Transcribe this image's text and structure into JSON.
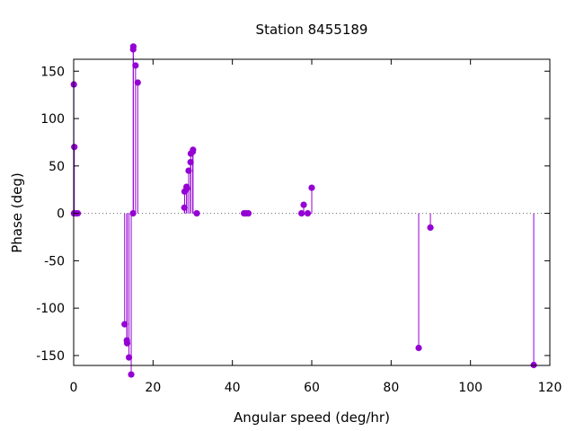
{
  "chart_data": {
    "type": "scatter",
    "style": "impulses-with-points",
    "title": "Station 8455189",
    "xlabel": "Angular speed (deg/hr)",
    "ylabel": "Phase (deg)",
    "xlim": [
      0,
      120
    ],
    "ylim": [
      -180,
      180
    ],
    "x_ticks": [
      0,
      20,
      40,
      60,
      80,
      100,
      120
    ],
    "y_ticks": [
      -150,
      -100,
      -50,
      0,
      50,
      100,
      150
    ],
    "x_tick_labels": [
      "0",
      "20",
      "40",
      "60",
      "80",
      "100",
      "120"
    ],
    "y_tick_labels": [
      "-150",
      "-100",
      "-50",
      "0",
      "50",
      "100",
      "150"
    ],
    "grid": false,
    "zero_line": "dotted",
    "color": "#9400d3",
    "series": [
      {
        "points": [
          [
            0.04,
            136
          ],
          [
            0.08,
            0
          ],
          [
            0.16,
            70
          ],
          [
            0.54,
            0
          ],
          [
            1.02,
            0
          ],
          [
            12.85,
            -117
          ],
          [
            13.4,
            -134
          ],
          [
            13.47,
            -137
          ],
          [
            13.94,
            -152
          ],
          [
            14.5,
            -170
          ],
          [
            14.96,
            0
          ],
          [
            15.04,
            176
          ],
          [
            15.0,
            173
          ],
          [
            15.59,
            156
          ],
          [
            16.14,
            138
          ],
          [
            27.9,
            6
          ],
          [
            27.97,
            23
          ],
          [
            28.51,
            26
          ],
          [
            28.44,
            28
          ],
          [
            28.98,
            45
          ],
          [
            29.46,
            54
          ],
          [
            29.53,
            63
          ],
          [
            30.0,
            65
          ],
          [
            30.08,
            67
          ],
          [
            31.02,
            0
          ],
          [
            42.93,
            0
          ],
          [
            43.48,
            0
          ],
          [
            44.03,
            0
          ],
          [
            57.42,
            0
          ],
          [
            57.97,
            9
          ],
          [
            58.98,
            0
          ],
          [
            60.0,
            27
          ],
          [
            86.95,
            -142
          ],
          [
            89.9,
            -15
          ],
          [
            115.94,
            -160
          ]
        ]
      }
    ]
  }
}
